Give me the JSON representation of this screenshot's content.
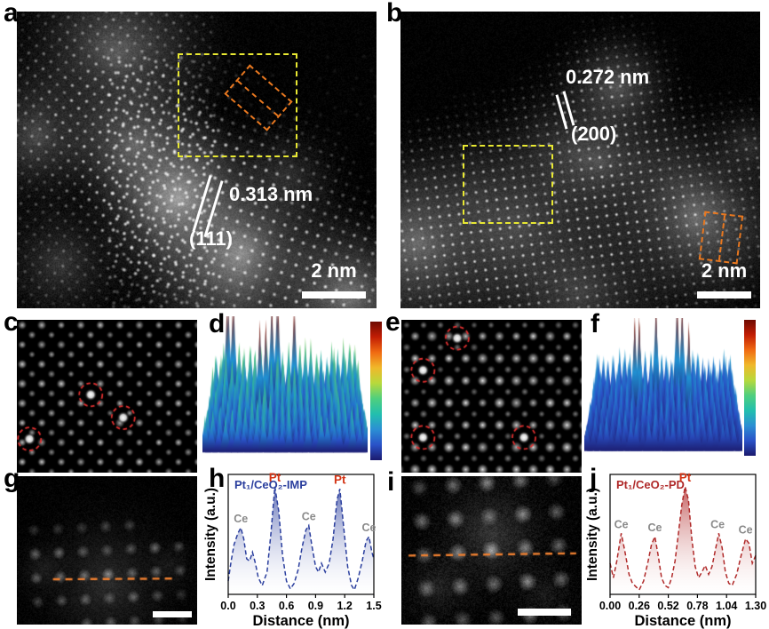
{
  "figure_type": "STEM characterization figure",
  "colors": {
    "yellow_box": "#e8e832",
    "orange_box": "#e87820",
    "red_circle": "#e23030",
    "profile_line_overlay": "#f08030",
    "scalebar": "#ffffff",
    "h_blue": "#2b3f9e",
    "j_red": "#b02a2a",
    "pt_label_red": "#d43415",
    "ce_label_gray": "#8a8a8a",
    "colorbar_gradient": [
      "#6e0a02",
      "#c21d04",
      "#f06a12",
      "#f0b82a",
      "#b8d93c",
      "#4fcf7e",
      "#22bfae",
      "#2b8fd4",
      "#2a52c8",
      "#1b1a6e"
    ]
  },
  "panels": {
    "a": {
      "label": "a",
      "annotations": {
        "spacing": "0.313 nm",
        "plane": "(111)",
        "scalebar": "2 nm"
      }
    },
    "b": {
      "label": "b",
      "annotations": {
        "spacing": "0.272 nm",
        "plane": "(200)",
        "scalebar": "2 nm"
      }
    },
    "c": {
      "label": "c",
      "circles": [
        [
          0.41,
          0.49
        ],
        [
          0.59,
          0.64
        ],
        [
          0.07,
          0.78
        ]
      ]
    },
    "d": {
      "label": "d"
    },
    "e": {
      "label": "e",
      "circles": [
        [
          0.31,
          0.12
        ],
        [
          0.12,
          0.33
        ],
        [
          0.12,
          0.77
        ],
        [
          0.68,
          0.77
        ]
      ]
    },
    "f": {
      "label": "f"
    },
    "g": {
      "label": "g",
      "profile_line": [
        0.2,
        0.695,
        0.89,
        0.69
      ]
    },
    "h": {
      "label": "h"
    },
    "i": {
      "label": "i",
      "profile_line": [
        0.04,
        0.535,
        0.97,
        0.52
      ]
    },
    "j": {
      "label": "j"
    }
  },
  "chart_data": [
    {
      "panel": "h",
      "type": "line",
      "title": "Pt₁/CeO₂-IMP",
      "xlabel": "Distance (nm)",
      "ylabel": "Intensity (a.u.)",
      "xlim": [
        0,
        1.5
      ],
      "xtick_labels": [
        "0.0",
        "0.3",
        "0.6",
        "0.9",
        "1.2",
        "1.5"
      ],
      "line_color": "#2b3f9e",
      "x": [
        0.0,
        0.03,
        0.06,
        0.1,
        0.13,
        0.16,
        0.19,
        0.22,
        0.25,
        0.28,
        0.31,
        0.35,
        0.4,
        0.44,
        0.48,
        0.52,
        0.56,
        0.6,
        0.64,
        0.68,
        0.72,
        0.76,
        0.8,
        0.83,
        0.86,
        0.9,
        0.93,
        0.96,
        1.0,
        1.04,
        1.08,
        1.12,
        1.15,
        1.19,
        1.23,
        1.27,
        1.3,
        1.34,
        1.38,
        1.42,
        1.45,
        1.48,
        1.5
      ],
      "y": [
        0.12,
        0.3,
        0.45,
        0.55,
        0.6,
        0.5,
        0.32,
        0.3,
        0.38,
        0.28,
        0.15,
        0.08,
        0.2,
        0.55,
        0.97,
        0.75,
        0.35,
        0.12,
        0.05,
        0.1,
        0.22,
        0.42,
        0.58,
        0.62,
        0.45,
        0.25,
        0.2,
        0.28,
        0.2,
        0.28,
        0.5,
        0.85,
        0.95,
        0.6,
        0.25,
        0.08,
        0.04,
        0.15,
        0.3,
        0.48,
        0.52,
        0.38,
        0.32
      ],
      "peaks": [
        {
          "label": "Ce",
          "x": 0.13,
          "y": 0.6,
          "color": "#8a8a8a"
        },
        {
          "label": "Pt",
          "x": 0.48,
          "y": 0.97,
          "color": "#d43415"
        },
        {
          "label": "Ce",
          "x": 0.83,
          "y": 0.62,
          "color": "#8a8a8a"
        },
        {
          "label": "Pt",
          "x": 1.15,
          "y": 0.95,
          "color": "#d43415"
        },
        {
          "label": "Ce",
          "x": 1.45,
          "y": 0.52,
          "color": "#8a8a8a"
        }
      ]
    },
    {
      "panel": "j",
      "type": "line",
      "title": "Pt₁/CeO₂-PD",
      "xlabel": "Distance (nm)",
      "ylabel": "Intensity (a.u.)",
      "xlim": [
        0,
        1.3
      ],
      "xtick_labels": [
        "0.00",
        "0.26",
        "0.52",
        "0.78",
        "1.04",
        "1.30"
      ],
      "line_color": "#b02a2a",
      "x": [
        0.0,
        0.03,
        0.06,
        0.1,
        0.13,
        0.17,
        0.2,
        0.23,
        0.26,
        0.3,
        0.34,
        0.37,
        0.4,
        0.43,
        0.46,
        0.49,
        0.52,
        0.55,
        0.58,
        0.61,
        0.64,
        0.67,
        0.7,
        0.73,
        0.76,
        0.79,
        0.82,
        0.85,
        0.88,
        0.91,
        0.94,
        0.97,
        1.0,
        1.03,
        1.06,
        1.09,
        1.13,
        1.17,
        1.21,
        1.24,
        1.27,
        1.3
      ],
      "y": [
        0.28,
        0.15,
        0.3,
        0.55,
        0.4,
        0.18,
        0.1,
        0.07,
        0.04,
        0.12,
        0.3,
        0.45,
        0.52,
        0.35,
        0.15,
        0.08,
        0.06,
        0.15,
        0.3,
        0.55,
        0.8,
        0.97,
        0.85,
        0.5,
        0.25,
        0.15,
        0.2,
        0.26,
        0.18,
        0.25,
        0.4,
        0.55,
        0.42,
        0.2,
        0.1,
        0.08,
        0.18,
        0.35,
        0.5,
        0.46,
        0.28,
        0.35
      ],
      "peaks": [
        {
          "label": "Ce",
          "x": 0.1,
          "y": 0.55,
          "color": "#8a8a8a"
        },
        {
          "label": "Ce",
          "x": 0.4,
          "y": 0.52,
          "color": "#8a8a8a"
        },
        {
          "label": "Pt",
          "x": 0.67,
          "y": 0.97,
          "color": "#d43415"
        },
        {
          "label": "Ce",
          "x": 0.96,
          "y": 0.55,
          "color": "#8a8a8a"
        },
        {
          "label": "Ce",
          "x": 1.21,
          "y": 0.5,
          "color": "#8a8a8a"
        }
      ]
    }
  ],
  "surface_plots": {
    "d": {
      "style": "dense spikes, green-teal tips, navy bases, 3 tall dark-red peaks at back"
    },
    "f": {
      "style": "dense spikes, blue-teal tips, navy bases, tall red peaks scattered"
    }
  }
}
